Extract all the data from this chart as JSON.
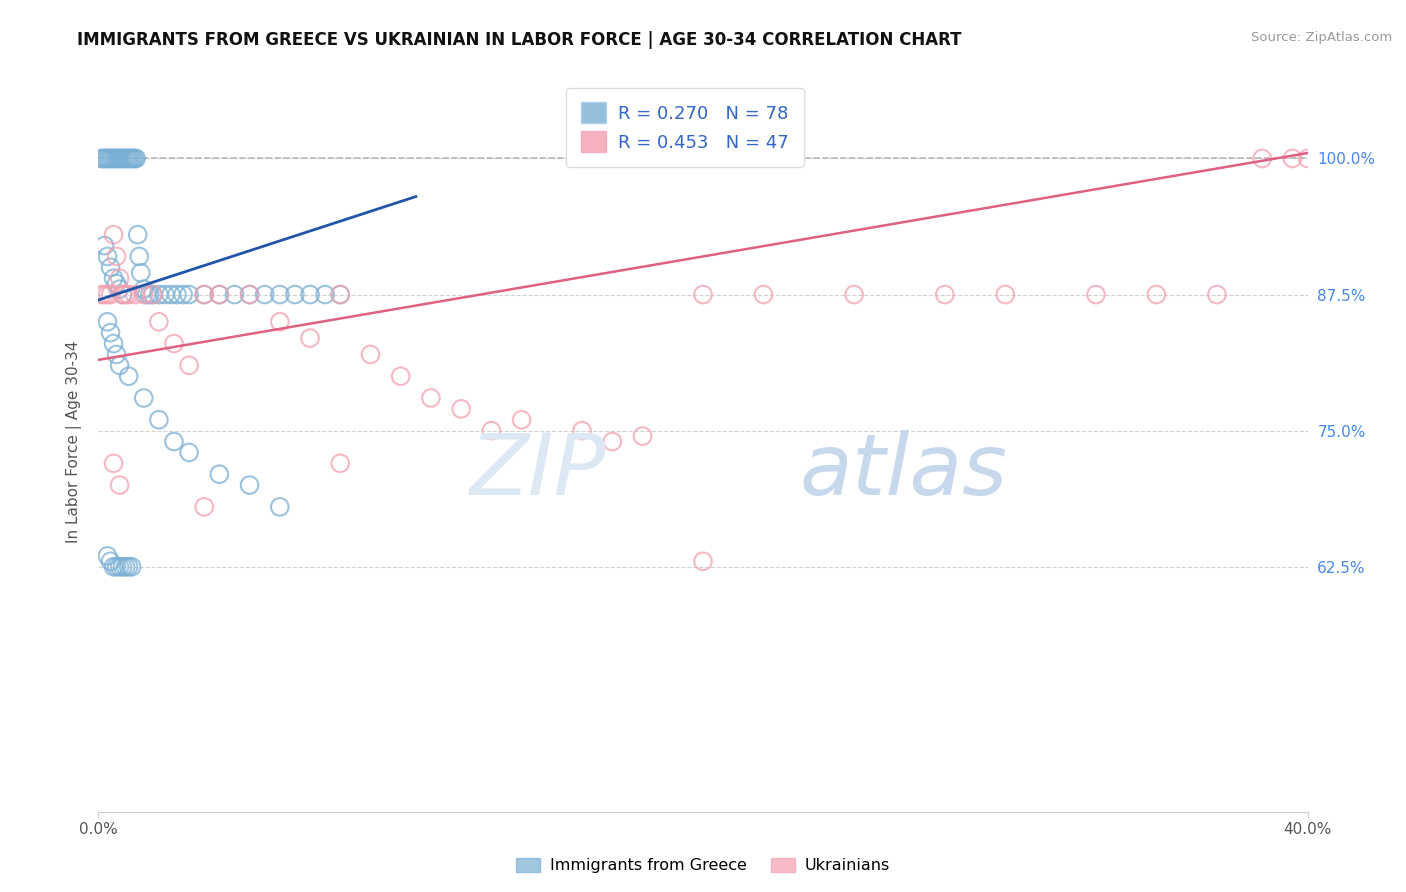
{
  "title": "IMMIGRANTS FROM GREECE VS UKRAINIAN IN LABOR FORCE | AGE 30-34 CORRELATION CHART",
  "source": "Source: ZipAtlas.com",
  "ylabel": "In Labor Force | Age 30-34",
  "xlim": [
    0.0,
    40.0
  ],
  "ylim": [
    40.0,
    108.0
  ],
  "yticks": [
    62.5,
    75.0,
    87.5,
    100.0
  ],
  "ytick_labels": [
    "62.5%",
    "75.0%",
    "87.5%",
    "100.0%"
  ],
  "legend_r1": "R = 0.270",
  "legend_n1": "N = 78",
  "legend_r2": "R = 0.453",
  "legend_n2": "N = 47",
  "color_blue": "#7aafd4",
  "color_pink": "#f4a0b0",
  "color_blue_line": "#2255aa",
  "color_pink_line": "#e06080",
  "blue_line_x": [
    0.0,
    10.5
  ],
  "blue_line_y": [
    87.0,
    96.5
  ],
  "pink_line_x": [
    0.0,
    40.0
  ],
  "pink_line_y": [
    81.5,
    100.5
  ],
  "dashed_line_y": 100.0,
  "watermark_zip": "ZIP",
  "watermark_atlas": "atlas",
  "greece_x": [
    0.1,
    0.15,
    0.2,
    0.25,
    0.3,
    0.35,
    0.4,
    0.45,
    0.5,
    0.55,
    0.6,
    0.65,
    0.7,
    0.75,
    0.8,
    0.85,
    0.9,
    0.95,
    1.0,
    1.05,
    1.1,
    1.15,
    1.2,
    1.25,
    1.3,
    1.35,
    1.4,
    1.5,
    1.6,
    1.7,
    1.8,
    2.0,
    2.2,
    2.4,
    2.6,
    2.8,
    3.0,
    3.5,
    4.0,
    4.5,
    5.0,
    5.5,
    6.0,
    6.5,
    7.0,
    7.5,
    8.0,
    0.2,
    0.3,
    0.4,
    0.5,
    0.6,
    0.7,
    0.8,
    0.3,
    0.4,
    0.5,
    0.6,
    0.7,
    1.0,
    1.5,
    2.0,
    2.5,
    3.0,
    4.0,
    5.0,
    6.0,
    0.3,
    0.4,
    0.5,
    0.6,
    0.7,
    0.8,
    0.9,
    1.0,
    1.1
  ],
  "greece_y": [
    100.0,
    100.0,
    100.0,
    100.0,
    100.0,
    100.0,
    100.0,
    100.0,
    100.0,
    100.0,
    100.0,
    100.0,
    100.0,
    100.0,
    100.0,
    100.0,
    100.0,
    100.0,
    100.0,
    100.0,
    100.0,
    100.0,
    100.0,
    100.0,
    93.0,
    91.0,
    89.5,
    88.0,
    87.5,
    87.5,
    87.5,
    87.5,
    87.5,
    87.5,
    87.5,
    87.5,
    87.5,
    87.5,
    87.5,
    87.5,
    87.5,
    87.5,
    87.5,
    87.5,
    87.5,
    87.5,
    87.5,
    92.0,
    91.0,
    90.0,
    89.0,
    88.5,
    88.0,
    87.5,
    85.0,
    84.0,
    83.0,
    82.0,
    81.0,
    80.0,
    78.0,
    76.0,
    74.0,
    73.0,
    71.0,
    70.0,
    68.0,
    63.5,
    63.0,
    62.5,
    62.5,
    62.5,
    62.5,
    62.5,
    62.5,
    62.5
  ],
  "ukraine_x": [
    0.1,
    0.2,
    0.3,
    0.4,
    0.5,
    0.6,
    0.7,
    0.8,
    0.9,
    1.0,
    1.2,
    1.5,
    1.8,
    2.0,
    2.5,
    3.0,
    3.5,
    4.0,
    5.0,
    6.0,
    7.0,
    8.0,
    9.0,
    10.0,
    11.0,
    12.0,
    14.0,
    16.0,
    18.0,
    20.0,
    22.0,
    25.0,
    28.0,
    30.0,
    33.0,
    35.0,
    37.0,
    38.5,
    39.5,
    40.0,
    0.5,
    0.7,
    3.5,
    8.0,
    13.0,
    17.0,
    20.0
  ],
  "ukraine_y": [
    87.5,
    87.5,
    87.5,
    87.5,
    93.0,
    91.0,
    89.0,
    87.5,
    87.5,
    87.5,
    87.5,
    87.5,
    87.5,
    85.0,
    83.0,
    81.0,
    87.5,
    87.5,
    87.5,
    85.0,
    83.5,
    87.5,
    82.0,
    80.0,
    78.0,
    77.0,
    76.0,
    75.0,
    74.5,
    87.5,
    87.5,
    87.5,
    87.5,
    87.5,
    87.5,
    87.5,
    87.5,
    100.0,
    100.0,
    100.0,
    72.0,
    70.0,
    68.0,
    72.0,
    75.0,
    74.0,
    63.0
  ]
}
